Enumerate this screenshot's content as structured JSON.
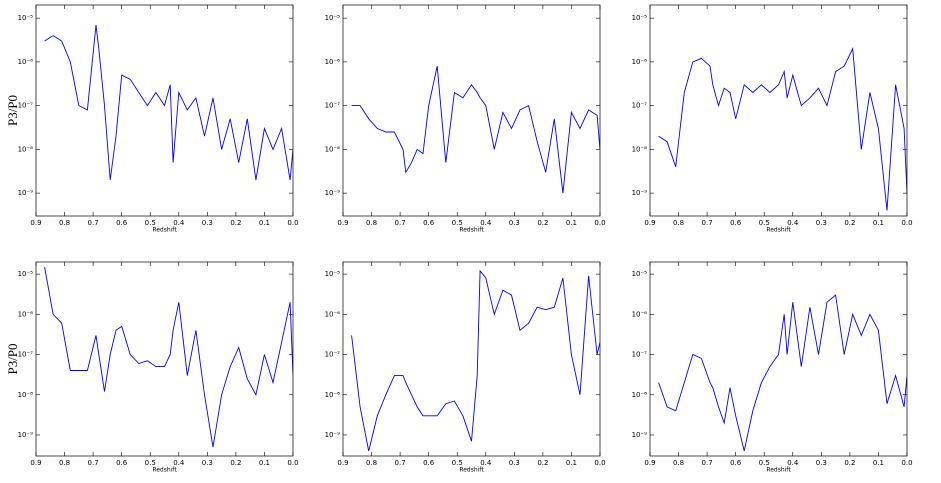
{
  "chart_data": [
    {
      "type": "line",
      "ylabel": "P3/P0",
      "xlabel": "Redshift",
      "color": "#0000ff",
      "log_scale": true,
      "grid": false,
      "x": [
        0.87,
        0.84,
        0.81,
        0.78,
        0.75,
        0.72,
        0.69,
        0.68,
        0.66,
        0.64,
        0.62,
        0.6,
        0.57,
        0.54,
        0.51,
        0.48,
        0.45,
        0.43,
        0.42,
        0.4,
        0.37,
        0.34,
        0.31,
        0.28,
        0.25,
        0.22,
        0.19,
        0.16,
        0.13,
        0.1,
        0.07,
        0.04,
        0.01,
        0.0
      ],
      "values": [
        3e-06,
        4e-06,
        3e-06,
        1e-06,
        1e-07,
        8e-08,
        7e-06,
        2e-06,
        1e-07,
        2e-09,
        2e-08,
        5e-07,
        4e-07,
        2e-07,
        1e-07,
        2e-07,
        1e-07,
        3e-07,
        5e-09,
        2e-07,
        8e-08,
        1.5e-07,
        2e-08,
        1.5e-07,
        1e-08,
        5e-08,
        5e-09,
        5e-08,
        2e-09,
        3e-08,
        1e-08,
        3e-08,
        2e-09,
        1e-08
      ],
      "xlim": [
        0.9,
        0.0
      ],
      "xticks": [
        0.9,
        0.8,
        0.7,
        0.6,
        0.5,
        0.4,
        0.3,
        0.2,
        0.1,
        {
          "value": 0,
          "label": "0.0"
        }
      ],
      "ylim": [
        3e-10,
        2e-05
      ],
      "yticks": [
        {
          "value": 1e-09,
          "label": "10⁻⁹"
        },
        {
          "value": 1e-08,
          "label": "10⁻⁸"
        },
        {
          "value": 1e-07,
          "label": "10⁻⁷"
        },
        {
          "value": 1e-06,
          "label": "10⁻⁶"
        },
        {
          "value": 1e-05,
          "label": "10⁻⁵"
        }
      ]
    },
    {
      "type": "line",
      "xlabel": "Redshift",
      "color": "#0000ff",
      "log_scale": true,
      "grid": false,
      "x": [
        0.87,
        0.84,
        0.81,
        0.78,
        0.75,
        0.72,
        0.69,
        0.68,
        0.66,
        0.64,
        0.62,
        0.6,
        0.57,
        0.54,
        0.51,
        0.48,
        0.45,
        0.43,
        0.42,
        0.4,
        0.37,
        0.34,
        0.31,
        0.28,
        0.25,
        0.22,
        0.19,
        0.16,
        0.13,
        0.1,
        0.07,
        0.04,
        0.01,
        0.0
      ],
      "values": [
        1e-07,
        1e-07,
        5e-08,
        3e-08,
        2.5e-08,
        2.5e-08,
        1e-08,
        3e-09,
        5e-09,
        1e-08,
        8e-09,
        1e-07,
        8e-07,
        5e-09,
        2e-07,
        1.5e-07,
        3e-07,
        2e-07,
        1.5e-07,
        1e-07,
        1e-08,
        7e-08,
        3e-08,
        8e-08,
        1e-07,
        1.5e-08,
        3e-09,
        5e-08,
        1e-09,
        7e-08,
        3e-08,
        8e-08,
        6e-08,
        1e-08
      ],
      "xlim": [
        0.9,
        0.0
      ],
      "xticks": [
        0.9,
        0.8,
        0.7,
        0.6,
        0.5,
        0.4,
        0.3,
        0.2,
        0.1,
        {
          "value": 0,
          "label": "0.0"
        }
      ],
      "ylim": [
        3e-10,
        2e-05
      ],
      "yticks": [
        {
          "value": 1e-09,
          "label": "10⁻⁹"
        },
        {
          "value": 1e-08,
          "label": "10⁻⁸"
        },
        {
          "value": 1e-07,
          "label": "10⁻⁷"
        },
        {
          "value": 1e-06,
          "label": "10⁻⁶"
        },
        {
          "value": 1e-05,
          "label": "10⁻⁵"
        }
      ]
    },
    {
      "type": "line",
      "xlabel": "Redshift",
      "color": "#0000ff",
      "log_scale": true,
      "grid": false,
      "x": [
        0.87,
        0.84,
        0.81,
        0.78,
        0.75,
        0.72,
        0.69,
        0.68,
        0.66,
        0.64,
        0.62,
        0.6,
        0.57,
        0.54,
        0.51,
        0.48,
        0.45,
        0.43,
        0.42,
        0.4,
        0.37,
        0.34,
        0.31,
        0.28,
        0.25,
        0.22,
        0.19,
        0.16,
        0.13,
        0.1,
        0.07,
        0.04,
        0.01,
        0.0
      ],
      "values": [
        2e-08,
        1.5e-08,
        4e-09,
        2e-07,
        1e-06,
        1.2e-06,
        8e-07,
        3e-07,
        1e-07,
        2.5e-07,
        2e-07,
        5e-08,
        3e-07,
        2e-07,
        3e-07,
        2e-07,
        3e-07,
        6e-07,
        1.5e-07,
        5e-07,
        1e-07,
        1.5e-07,
        2.5e-07,
        1e-07,
        6e-07,
        8e-07,
        2e-06,
        1e-08,
        2e-07,
        3e-08,
        4e-10,
        3e-07,
        3e-08,
        1e-09
      ],
      "xlim": [
        0.9,
        0.0
      ],
      "xticks": [
        0.9,
        0.8,
        0.7,
        0.6,
        0.5,
        0.4,
        0.3,
        0.2,
        0.1,
        {
          "value": 0,
          "label": "0.0"
        }
      ],
      "ylim": [
        3e-10,
        2e-05
      ],
      "yticks": [
        {
          "value": 1e-09,
          "label": "10⁻⁹"
        },
        {
          "value": 1e-08,
          "label": "10⁻⁸"
        },
        {
          "value": 1e-07,
          "label": "10⁻⁷"
        },
        {
          "value": 1e-06,
          "label": "10⁻⁶"
        },
        {
          "value": 1e-05,
          "label": "10⁻⁵"
        }
      ]
    },
    {
      "type": "line",
      "ylabel": "P3/P0",
      "xlabel": "Redshift",
      "color": "#0000ff",
      "log_scale": true,
      "grid": false,
      "x": [
        0.87,
        0.84,
        0.81,
        0.78,
        0.75,
        0.72,
        0.69,
        0.68,
        0.66,
        0.64,
        0.62,
        0.6,
        0.57,
        0.54,
        0.51,
        0.48,
        0.45,
        0.43,
        0.42,
        0.4,
        0.37,
        0.34,
        0.31,
        0.28,
        0.25,
        0.22,
        0.19,
        0.16,
        0.13,
        0.1,
        0.07,
        0.04,
        0.01,
        0.0
      ],
      "values": [
        1.5e-05,
        1e-06,
        6e-07,
        4e-08,
        4e-08,
        4e-08,
        3e-07,
        1e-07,
        1.2e-08,
        1e-07,
        4e-07,
        5e-07,
        1e-07,
        6e-08,
        7e-08,
        5e-08,
        5e-08,
        1e-07,
        4e-07,
        2e-06,
        3e-08,
        4e-07,
        1e-08,
        5e-10,
        1e-08,
        5e-08,
        1.5e-07,
        2.5e-08,
        1e-08,
        1e-07,
        2e-08,
        2e-07,
        2e-06,
        3e-08
      ],
      "xlim": [
        0.9,
        0.0
      ],
      "xticks": [
        0.9,
        0.8,
        0.7,
        0.6,
        0.5,
        0.4,
        0.3,
        0.2,
        0.1,
        {
          "value": 0,
          "label": "0.0"
        }
      ],
      "ylim": [
        3e-10,
        2e-05
      ],
      "yticks": [
        {
          "value": 1e-09,
          "label": "10⁻⁹"
        },
        {
          "value": 1e-08,
          "label": "10⁻⁸"
        },
        {
          "value": 1e-07,
          "label": "10⁻⁷"
        },
        {
          "value": 1e-06,
          "label": "10⁻⁶"
        },
        {
          "value": 1e-05,
          "label": "10⁻⁵"
        }
      ]
    },
    {
      "type": "line",
      "xlabel": "Redshift",
      "color": "#0000ff",
      "log_scale": true,
      "grid": false,
      "x": [
        0.87,
        0.84,
        0.81,
        0.78,
        0.75,
        0.72,
        0.69,
        0.68,
        0.66,
        0.64,
        0.62,
        0.6,
        0.57,
        0.54,
        0.51,
        0.48,
        0.45,
        0.43,
        0.42,
        0.4,
        0.37,
        0.34,
        0.31,
        0.28,
        0.25,
        0.22,
        0.19,
        0.16,
        0.13,
        0.1,
        0.07,
        0.04,
        0.01,
        0.0
      ],
      "values": [
        3e-07,
        5e-09,
        4e-10,
        3e-09,
        1e-08,
        3e-08,
        3e-08,
        2e-08,
        1e-08,
        5e-09,
        3e-09,
        3e-09,
        3e-09,
        6e-09,
        7e-09,
        3e-09,
        7e-10,
        3e-08,
        1.2e-05,
        8e-06,
        1e-06,
        4e-06,
        3e-06,
        4e-07,
        6e-07,
        1.5e-06,
        1.3e-06,
        1.5e-06,
        8e-06,
        1e-07,
        1e-08,
        9e-06,
        1e-07,
        2e-07
      ],
      "xlim": [
        0.9,
        0.0
      ],
      "xticks": [
        0.9,
        0.8,
        0.7,
        0.6,
        0.5,
        0.4,
        0.3,
        0.2,
        0.1,
        {
          "value": 0,
          "label": "0.0"
        }
      ],
      "ylim": [
        3e-10,
        2e-05
      ],
      "yticks": [
        {
          "value": 1e-09,
          "label": "10⁻⁹"
        },
        {
          "value": 1e-08,
          "label": "10⁻⁸"
        },
        {
          "value": 1e-07,
          "label": "10⁻⁷"
        },
        {
          "value": 1e-06,
          "label": "10⁻⁶"
        },
        {
          "value": 1e-05,
          "label": "10⁻⁵"
        }
      ]
    },
    {
      "type": "line",
      "xlabel": "Redshift",
      "color": "#0000ff",
      "log_scale": true,
      "grid": false,
      "x": [
        0.87,
        0.84,
        0.81,
        0.78,
        0.75,
        0.72,
        0.69,
        0.68,
        0.66,
        0.64,
        0.62,
        0.6,
        0.57,
        0.54,
        0.51,
        0.48,
        0.45,
        0.43,
        0.42,
        0.4,
        0.37,
        0.34,
        0.31,
        0.28,
        0.25,
        0.22,
        0.19,
        0.16,
        0.13,
        0.1,
        0.07,
        0.04,
        0.01,
        0.0
      ],
      "values": [
        2e-08,
        5e-09,
        4e-09,
        2e-08,
        1e-07,
        8e-08,
        2e-08,
        1.5e-08,
        5e-09,
        2e-09,
        1.5e-08,
        3e-09,
        4e-10,
        4e-09,
        2e-08,
        5e-08,
        1e-07,
        1e-06,
        1e-07,
        2e-06,
        5e-08,
        1.5e-06,
        1e-07,
        2e-06,
        3e-06,
        1e-07,
        1e-06,
        3e-07,
        1e-06,
        4e-07,
        6e-09,
        3e-08,
        5e-09,
        3e-08
      ],
      "xlim": [
        0.9,
        0.0
      ],
      "xticks": [
        0.9,
        0.8,
        0.7,
        0.6,
        0.5,
        0.4,
        0.3,
        0.2,
        0.1,
        {
          "value": 0,
          "label": "0.0"
        }
      ],
      "ylim": [
        3e-10,
        2e-05
      ],
      "yticks": [
        {
          "value": 1e-09,
          "label": "10⁻⁹"
        },
        {
          "value": 1e-08,
          "label": "10⁻⁸"
        },
        {
          "value": 1e-07,
          "label": "10⁻⁷"
        },
        {
          "value": 1e-06,
          "label": "10⁻⁶"
        },
        {
          "value": 1e-05,
          "label": "10⁻⁵"
        }
      ]
    }
  ]
}
